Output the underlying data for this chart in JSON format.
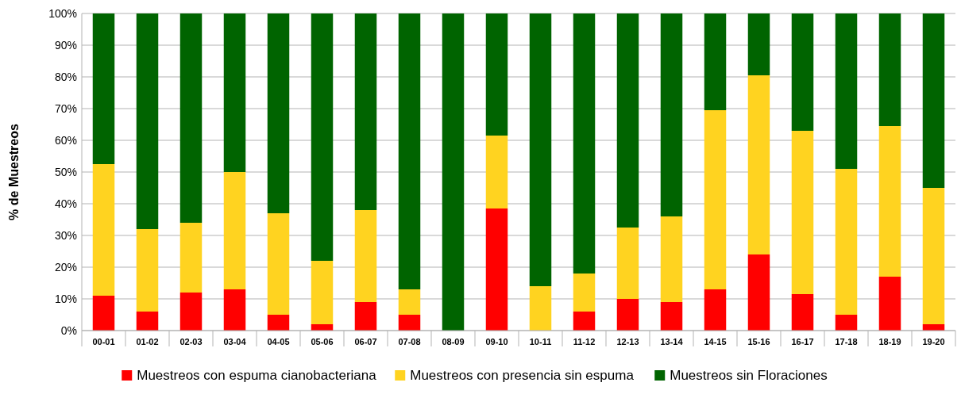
{
  "chart_data": {
    "type": "bar",
    "stacked": true,
    "ylabel": "% de Muestreos",
    "categories": [
      "00-01",
      "01-02",
      "02-03",
      "03-04",
      "04-05",
      "05-06",
      "06-07",
      "07-08",
      "08-09",
      "09-10",
      "10-11",
      "11-12",
      "12-13",
      "13-14",
      "14-15",
      "15-16",
      "16-17",
      "17-18",
      "18-19",
      "19-20"
    ],
    "series": [
      {
        "name": "Muestreos con espuma cianobacteriana",
        "color": "#ff0000",
        "values": [
          11,
          6,
          12,
          13,
          5,
          2,
          9,
          5,
          0,
          38.5,
          0,
          6,
          10,
          9,
          13,
          24,
          11.5,
          5,
          17,
          2
        ]
      },
      {
        "name": "Muestreos con presencia sin espuma",
        "color": "#ffd320",
        "values": [
          41.5,
          26,
          22,
          37,
          32,
          20,
          29,
          8,
          0,
          23,
          14,
          12,
          22.5,
          27,
          56.5,
          56.5,
          51.5,
          46,
          47.5,
          43
        ]
      },
      {
        "name": "Muestreos sin Floraciones",
        "color": "#006400",
        "values": [
          47.5,
          68,
          66,
          50,
          63,
          78,
          62,
          87,
          100,
          38.5,
          86,
          82,
          67.5,
          64,
          30.5,
          19.5,
          37,
          49,
          35.5,
          55
        ]
      }
    ],
    "ylim": [
      0,
      100
    ],
    "yticks": [
      {
        "value": 0,
        "label": "0%"
      },
      {
        "value": 10,
        "label": "10%"
      },
      {
        "value": 20,
        "label": "20%"
      },
      {
        "value": 30,
        "label": "30%"
      },
      {
        "value": 40,
        "label": "40%"
      },
      {
        "value": 50,
        "label": "50%"
      },
      {
        "value": 60,
        "label": "60%"
      },
      {
        "value": 70,
        "label": "70%"
      },
      {
        "value": 80,
        "label": "80%"
      },
      {
        "value": 90,
        "label": "90%"
      },
      {
        "value": 100,
        "label": "100%"
      }
    ],
    "grid": "y",
    "legend": "bottom"
  }
}
